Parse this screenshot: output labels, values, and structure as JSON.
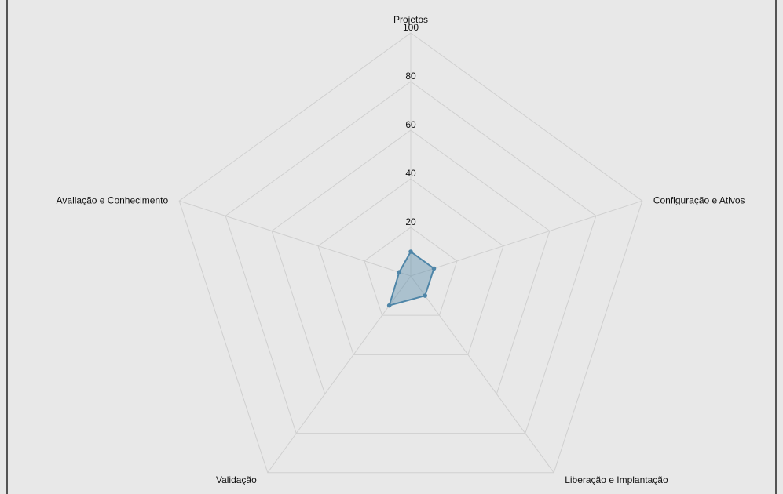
{
  "chart_data": {
    "type": "radar",
    "categories": [
      "Projetos",
      "Configuração e Ativos",
      "Liberação e Implantação",
      "Validação",
      "Avaliação e Conhecimento"
    ],
    "series": [
      {
        "color": "#4f86a8",
        "values": [
          10,
          10,
          10,
          15,
          5
        ]
      }
    ],
    "rlim": [
      0,
      100
    ],
    "rticks": [
      20,
      40,
      60,
      80,
      100
    ],
    "grid": true
  }
}
